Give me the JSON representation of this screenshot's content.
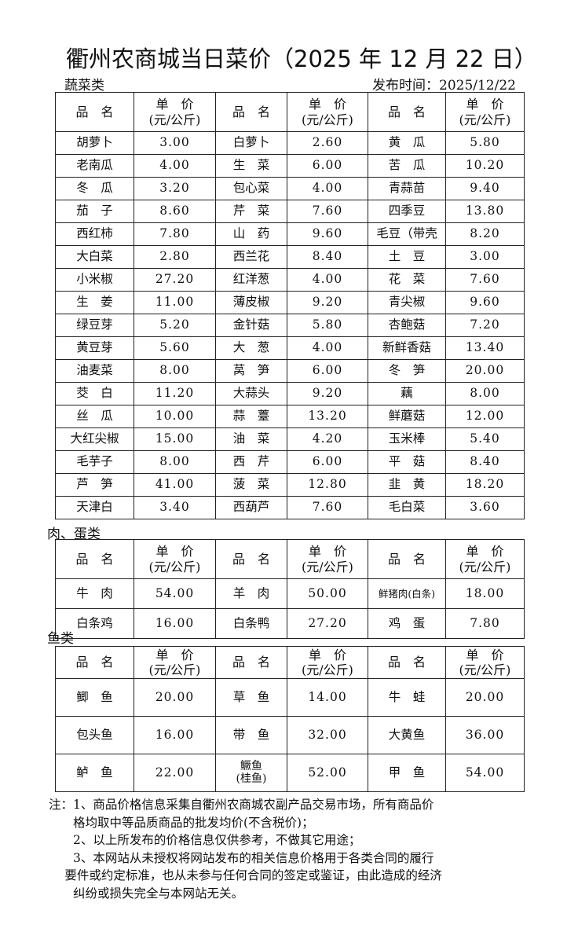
{
  "title": "衢州农商城当日菜价（2025 年 12 月 22 日）",
  "publish_label": "发布时间：2025/12/22",
  "header": {
    "name": "品　名",
    "price_line1": "单　价",
    "price_line2": "(元/公斤)"
  },
  "vegetables": {
    "label": "蔬菜类",
    "rows": [
      [
        [
          "胡萝卜",
          "3.00"
        ],
        [
          "白萝卜",
          "2.60"
        ],
        [
          "黄　瓜",
          "5.80"
        ]
      ],
      [
        [
          "老南瓜",
          "4.00"
        ],
        [
          "生　菜",
          "6.00"
        ],
        [
          "苦　瓜",
          "10.20"
        ]
      ],
      [
        [
          "冬　瓜",
          "3.20"
        ],
        [
          "包心菜",
          "4.00"
        ],
        [
          "青蒜苗",
          "9.40"
        ]
      ],
      [
        [
          "茄　子",
          "8.60"
        ],
        [
          "芹　菜",
          "7.60"
        ],
        [
          "四季豆",
          "13.80"
        ]
      ],
      [
        [
          "西红柿",
          "7.80"
        ],
        [
          "山　药",
          "9.60"
        ],
        [
          "毛豆（带壳",
          "8.20"
        ]
      ],
      [
        [
          "大白菜",
          "2.80"
        ],
        [
          "西兰花",
          "8.40"
        ],
        [
          "土　豆",
          "3.00"
        ]
      ],
      [
        [
          "小米椒",
          "27.20"
        ],
        [
          "红洋葱",
          "4.00"
        ],
        [
          "花　菜",
          "7.60"
        ]
      ],
      [
        [
          "生　姜",
          "11.00"
        ],
        [
          "薄皮椒",
          "9.20"
        ],
        [
          "青尖椒",
          "9.60"
        ]
      ],
      [
        [
          "绿豆芽",
          "5.20"
        ],
        [
          "金针菇",
          "5.80"
        ],
        [
          "杏鲍菇",
          "7.20"
        ]
      ],
      [
        [
          "黄豆芽",
          "5.60"
        ],
        [
          "大　葱",
          "4.00"
        ],
        [
          "新鲜香菇",
          "13.40"
        ]
      ],
      [
        [
          "油麦菜",
          "8.00"
        ],
        [
          "莴　笋",
          "6.00"
        ],
        [
          "冬　笋",
          "20.00"
        ]
      ],
      [
        [
          "茭　白",
          "11.20"
        ],
        [
          "大蒜头",
          "9.20"
        ],
        [
          "藕",
          "8.00"
        ]
      ],
      [
        [
          "丝　瓜",
          "10.00"
        ],
        [
          "蒜　薹",
          "13.20"
        ],
        [
          "鲜蘑菇",
          "12.00"
        ]
      ],
      [
        [
          "大红尖椒",
          "15.00"
        ],
        [
          "油　菜",
          "4.20"
        ],
        [
          "玉米棒",
          "5.40"
        ]
      ],
      [
        [
          "毛芋子",
          "8.00"
        ],
        [
          "西　芹",
          "6.00"
        ],
        [
          "平　菇",
          "8.40"
        ]
      ],
      [
        [
          "芦　笋",
          "41.00"
        ],
        [
          "菠　菜",
          "12.80"
        ],
        [
          "韭　黄",
          "18.20"
        ]
      ],
      [
        [
          "天津白",
          "3.40"
        ],
        [
          "西葫芦",
          "7.60"
        ],
        [
          "毛白菜",
          "3.60"
        ]
      ]
    ]
  },
  "meat": {
    "label": "肉、蛋类",
    "rows": [
      [
        [
          "牛　肉",
          "54.00"
        ],
        [
          "羊　肉",
          "50.00"
        ],
        [
          "鲜猪肉(白条)",
          "18.00"
        ]
      ],
      [
        [
          "白条鸡",
          "16.00"
        ],
        [
          "白条鸭",
          "27.20"
        ],
        [
          "鸡　蛋",
          "7.80"
        ]
      ]
    ]
  },
  "fish": {
    "label": "鱼类",
    "rows": [
      [
        [
          "鲫　鱼",
          "20.00"
        ],
        [
          "草　鱼",
          "14.00"
        ],
        [
          "牛　蛙",
          "20.00"
        ]
      ],
      [
        [
          "包头鱼",
          "16.00"
        ],
        [
          "带　鱼",
          "32.00"
        ],
        [
          "大黄鱼",
          "36.00"
        ]
      ],
      [
        [
          "鲈　鱼",
          "22.00"
        ],
        [
          "鳜鱼\n(桂鱼)",
          "52.00"
        ],
        [
          "甲　鱼",
          "54.00"
        ]
      ]
    ]
  },
  "notes": [
    "注：1、商品价格信息采集自衢州农商城农副产品交易市场，所有商品价",
    "　　格均取中等品质商品的批发均价(不含税价)；",
    "　　2、以上所发布的价格信息仅供参考，不做其它用途；",
    "　　3、本网站从未授权将网站发布的相关信息价格用于各类合同的履行",
    "　 要件或约定标准，也从未参与任何合同的签定或鉴证，由此造成的经济",
    "　　纠纷或损失完全与本网站无关。"
  ]
}
